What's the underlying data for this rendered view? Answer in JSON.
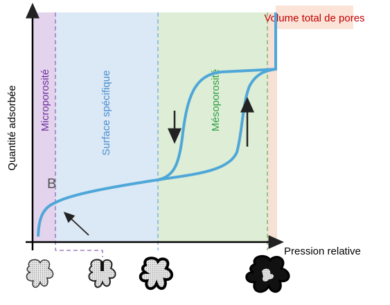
{
  "diagram": {
    "y_axis_label": "Quantité adsorbée",
    "x_axis_label": "Pression relative",
    "box_label": "Volume total de pores",
    "regions": [
      "Microporosité",
      "Surface spécifique",
      "Mésoporosité"
    ],
    "point_label": "B"
  }
}
